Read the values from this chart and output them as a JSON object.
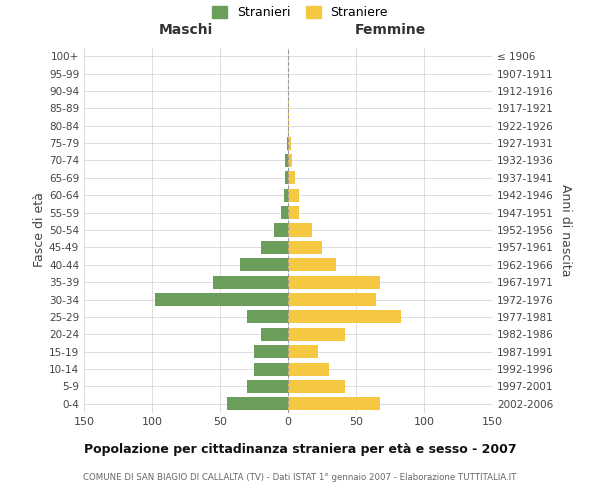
{
  "age_groups": [
    "0-4",
    "5-9",
    "10-14",
    "15-19",
    "20-24",
    "25-29",
    "30-34",
    "35-39",
    "40-44",
    "45-49",
    "50-54",
    "55-59",
    "60-64",
    "65-69",
    "70-74",
    "75-79",
    "80-84",
    "85-89",
    "90-94",
    "95-99",
    "100+"
  ],
  "birth_years": [
    "2002-2006",
    "1997-2001",
    "1992-1996",
    "1987-1991",
    "1982-1986",
    "1977-1981",
    "1972-1976",
    "1967-1971",
    "1962-1966",
    "1957-1961",
    "1952-1956",
    "1947-1951",
    "1942-1946",
    "1937-1941",
    "1932-1936",
    "1927-1931",
    "1922-1926",
    "1917-1921",
    "1912-1916",
    "1907-1911",
    "≤ 1906"
  ],
  "maschi": [
    45,
    30,
    25,
    25,
    20,
    30,
    98,
    55,
    35,
    20,
    10,
    5,
    3,
    2,
    2,
    1,
    0,
    0,
    0,
    0,
    0
  ],
  "femmine": [
    68,
    42,
    30,
    22,
    42,
    83,
    65,
    68,
    35,
    25,
    18,
    8,
    8,
    5,
    3,
    2,
    1,
    1,
    0,
    0,
    0
  ],
  "male_color": "#6a9e5a",
  "female_color": "#f5c842",
  "bar_height": 0.75,
  "xlim": 150,
  "title": "Popolazione per cittadinanza straniera per età e sesso - 2007",
  "subtitle": "COMUNE DI SAN BIAGIO DI CALLALTA (TV) - Dati ISTAT 1° gennaio 2007 - Elaborazione TUTTITALIA.IT",
  "ylabel_left": "Fasce di età",
  "ylabel_right": "Anni di nascita",
  "xlabel_left": "Maschi",
  "xlabel_right": "Femmine",
  "legend_male": "Stranieri",
  "legend_female": "Straniere",
  "bg_color": "#ffffff",
  "grid_color": "#d0d0d0",
  "dashed_color": "#999999"
}
